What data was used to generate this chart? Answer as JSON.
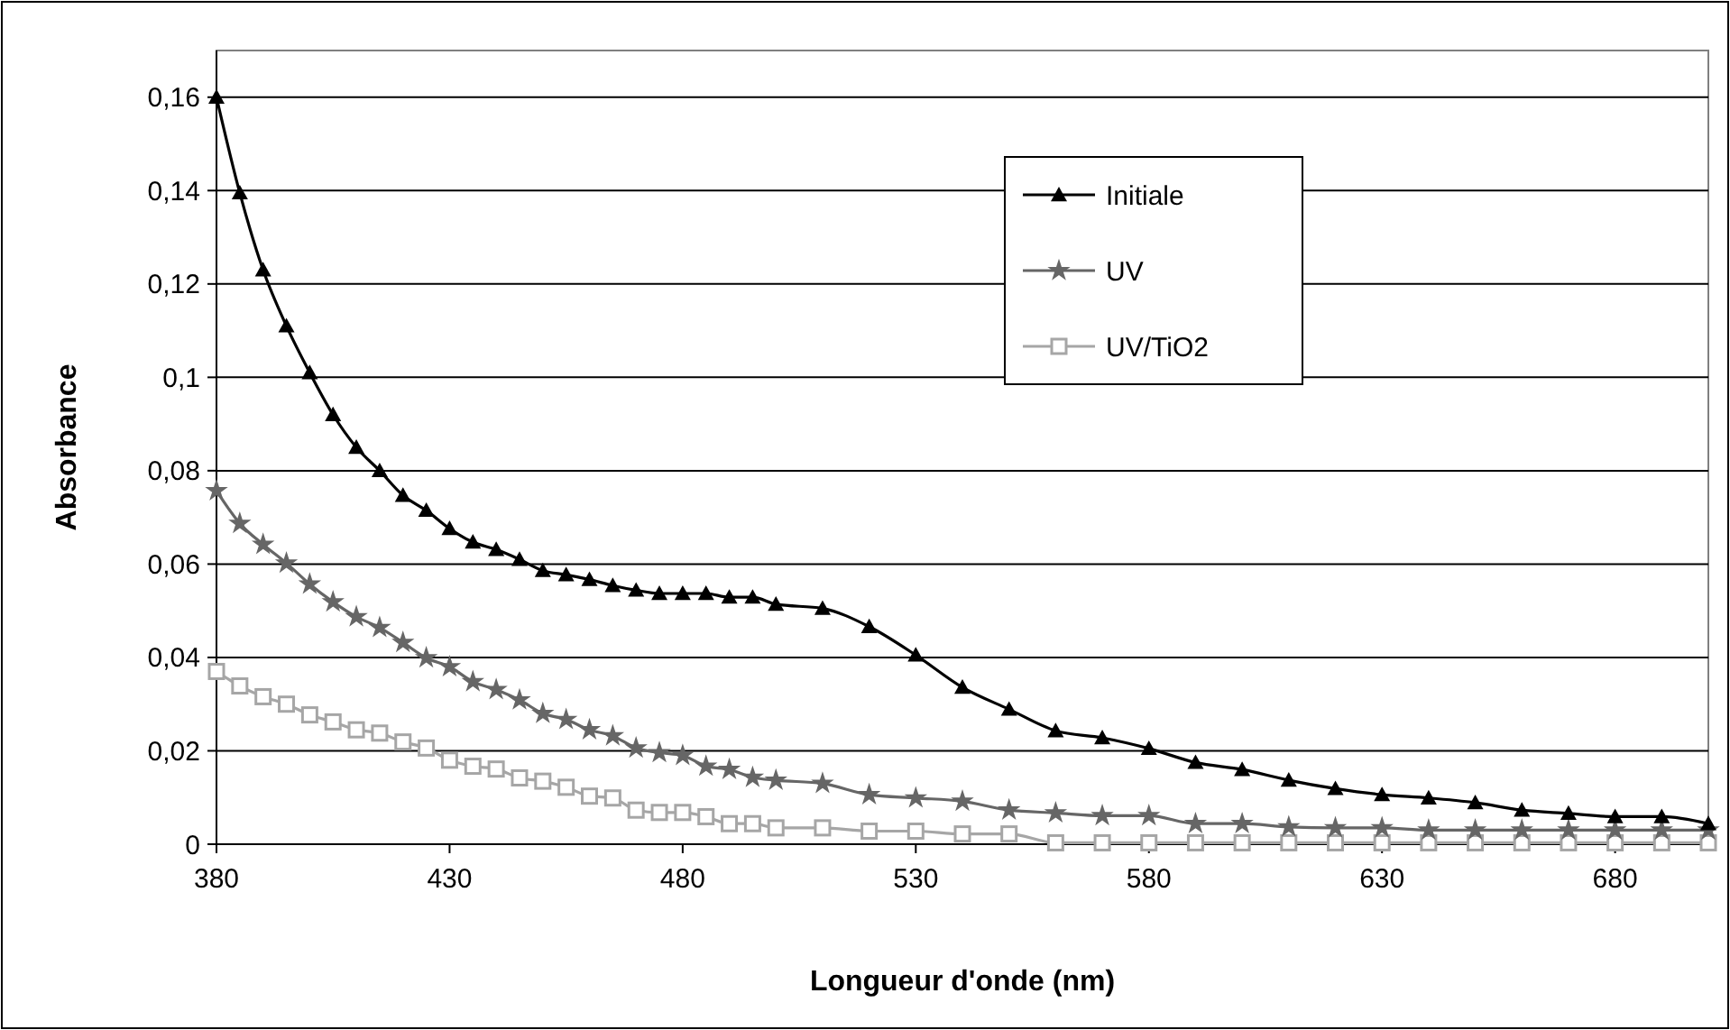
{
  "chart_data": {
    "type": "line",
    "xlabel": "Longueur d'onde (nm)",
    "ylabel": "Absorbance",
    "x": [
      380,
      385,
      390,
      395,
      400,
      405,
      410,
      415,
      420,
      425,
      430,
      435,
      440,
      445,
      450,
      455,
      460,
      465,
      470,
      475,
      480,
      485,
      490,
      495,
      500,
      510,
      520,
      530,
      540,
      550,
      560,
      570,
      580,
      590,
      600,
      610,
      620,
      630,
      640,
      650,
      660,
      670,
      680,
      690,
      700
    ],
    "series": [
      {
        "name": "Initiale",
        "color": "#000000",
        "marker": "triangle",
        "values": [
          0.16,
          0.1395,
          0.123,
          0.111,
          0.101,
          0.092,
          0.085,
          0.08,
          0.0747,
          0.0715,
          0.0676,
          0.0647,
          0.0631,
          0.061,
          0.0586,
          0.0577,
          0.0567,
          0.0554,
          0.0544,
          0.0537,
          0.0537,
          0.0537,
          0.0529,
          0.0529,
          0.0514,
          0.0505,
          0.0466,
          0.0405,
          0.0336,
          0.0289,
          0.0243,
          0.0228,
          0.0205,
          0.0175,
          0.016,
          0.0137,
          0.0119,
          0.0106,
          0.0099,
          0.0089,
          0.0073,
          0.0066,
          0.0059,
          0.0059,
          0.0044
        ]
      },
      {
        "name": "UV",
        "color": "#666666",
        "marker": "star",
        "values": [
          0.0757,
          0.0687,
          0.0642,
          0.0602,
          0.0557,
          0.0519,
          0.0487,
          0.0464,
          0.0432,
          0.0399,
          0.038,
          0.0348,
          0.0331,
          0.0309,
          0.028,
          0.0267,
          0.0245,
          0.0232,
          0.0206,
          0.0196,
          0.019,
          0.0167,
          0.016,
          0.0143,
          0.0137,
          0.013,
          0.0106,
          0.0099,
          0.0092,
          0.0073,
          0.0067,
          0.0061,
          0.0061,
          0.0044,
          0.0044,
          0.0037,
          0.0035,
          0.0035,
          0.003,
          0.003,
          0.003,
          0.003,
          0.003,
          0.003,
          0.003
        ]
      },
      {
        "name": "UV/TiO2",
        "color": "#a6a6a6",
        "marker": "square",
        "values": [
          0.037,
          0.0339,
          0.0316,
          0.03,
          0.0277,
          0.0262,
          0.0245,
          0.0238,
          0.0219,
          0.0206,
          0.018,
          0.0167,
          0.0161,
          0.0142,
          0.0135,
          0.0122,
          0.0103,
          0.0099,
          0.0073,
          0.0068,
          0.0068,
          0.0059,
          0.0044,
          0.0044,
          0.0035,
          0.0035,
          0.0028,
          0.0028,
          0.0022,
          0.0022,
          0.0003,
          0.0003,
          0.0003,
          0.0003,
          0.0003,
          0.0003,
          0.0003,
          0.0003,
          0.0003,
          0.0003,
          0.0003,
          0.0003,
          0.0003,
          0.0003,
          0.0003
        ]
      }
    ],
    "xlim": [
      380,
      700
    ],
    "xticks": [
      380,
      430,
      480,
      530,
      580,
      630,
      680
    ],
    "ylim": [
      0,
      0.17
    ],
    "yticks": [
      0,
      {
        "value": 0.02,
        "label": "0,02"
      },
      {
        "value": 0.04,
        "label": "0,04"
      },
      {
        "value": 0.06,
        "label": "0,06"
      },
      {
        "value": 0.08,
        "label": "0,08"
      },
      {
        "value": 0.1,
        "label": "0,1"
      },
      {
        "value": 0.12,
        "label": "0,12"
      },
      {
        "value": 0.14,
        "label": "0,14"
      },
      {
        "value": 0.16,
        "label": "0,16"
      }
    ],
    "grid": "y",
    "legend": "top right",
    "line_style": "solid"
  }
}
